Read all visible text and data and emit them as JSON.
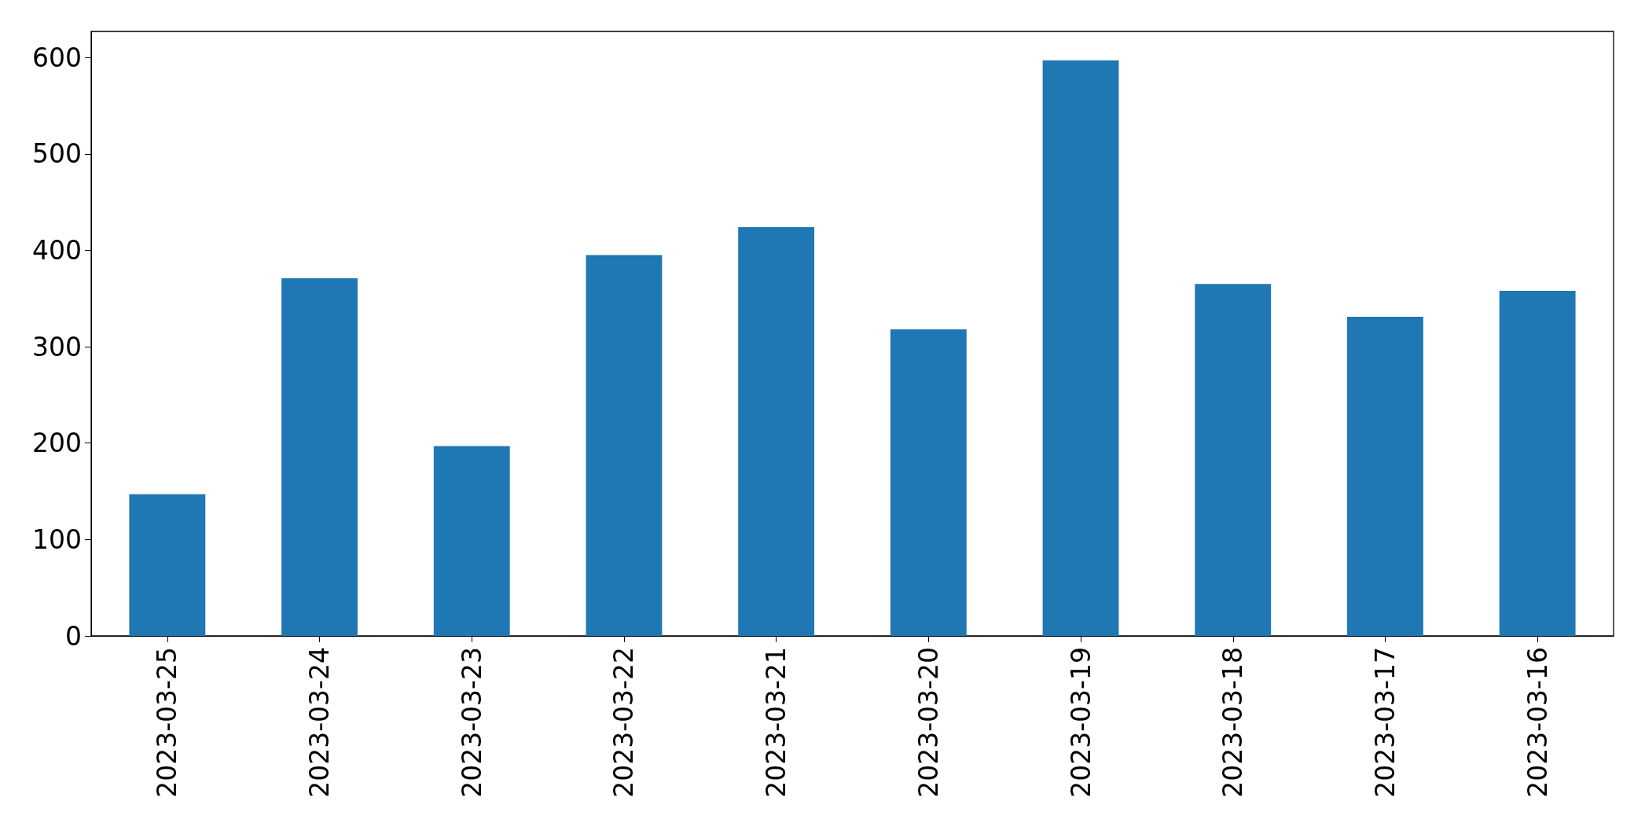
{
  "chart_data": {
    "type": "bar",
    "categories": [
      "2023-03-25",
      "2023-03-24",
      "2023-03-23",
      "2023-03-22",
      "2023-03-21",
      "2023-03-20",
      "2023-03-19",
      "2023-03-18",
      "2023-03-17",
      "2023-03-16"
    ],
    "values": [
      147,
      371,
      197,
      395,
      424,
      318,
      597,
      365,
      331,
      358
    ],
    "color": "#1f77b4",
    "ylim": [
      0,
      627
    ],
    "yticks": [
      0,
      100,
      200,
      300,
      400,
      500,
      600
    ]
  }
}
